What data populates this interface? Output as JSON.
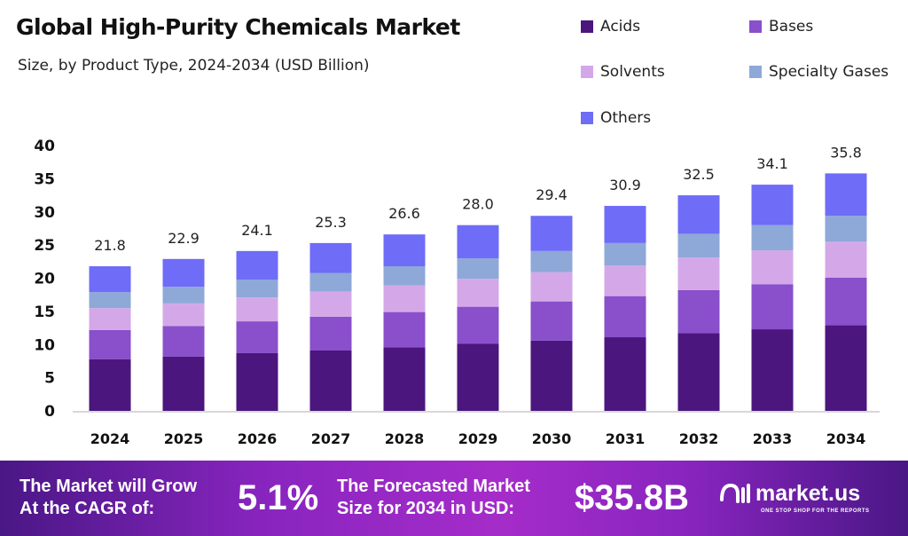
{
  "chart_data": {
    "type": "bar",
    "stacked": true,
    "title": "Global High-Purity Chemicals Market",
    "subtitle": "Size, by Product Type, 2024-2034 (USD Billion)",
    "categories": [
      "2024",
      "2025",
      "2026",
      "2027",
      "2028",
      "2029",
      "2030",
      "2031",
      "2032",
      "2033",
      "2034"
    ],
    "totals": [
      "21.8",
      "22.9",
      "24.1",
      "25.3",
      "26.6",
      "28.0",
      "29.4",
      "30.9",
      "32.5",
      "34.1",
      "35.8"
    ],
    "series": [
      {
        "name": "Acids",
        "color": "#4b167d",
        "values": [
          7.8,
          8.2,
          8.7,
          9.1,
          9.6,
          10.1,
          10.6,
          11.1,
          11.7,
          12.3,
          12.9
        ]
      },
      {
        "name": "Bases",
        "color": "#8a4fcb",
        "values": [
          4.4,
          4.6,
          4.8,
          5.1,
          5.3,
          5.6,
          5.9,
          6.2,
          6.5,
          6.8,
          7.2
        ]
      },
      {
        "name": "Solvents",
        "color": "#d4a8e8",
        "values": [
          3.3,
          3.4,
          3.6,
          3.8,
          4.0,
          4.2,
          4.4,
          4.6,
          4.9,
          5.1,
          5.4
        ]
      },
      {
        "name": "Specialty Gases",
        "color": "#8ea8d8",
        "values": [
          2.4,
          2.5,
          2.7,
          2.8,
          2.9,
          3.1,
          3.2,
          3.4,
          3.6,
          3.8,
          3.9
        ]
      },
      {
        "name": "Others",
        "color": "#6f6cf7",
        "values": [
          3.9,
          4.2,
          4.3,
          4.5,
          4.8,
          5.0,
          5.3,
          5.6,
          5.8,
          6.1,
          6.4
        ]
      }
    ],
    "yticks": [
      "0",
      "5",
      "10",
      "15",
      "20",
      "25",
      "30",
      "35",
      "40"
    ],
    "ylim": [
      0,
      40
    ],
    "grid": false,
    "legend": "top-right"
  },
  "banner": {
    "cagr_label_1": "The Market will Grow",
    "cagr_label_2": "At the CAGR of:",
    "cagr_value": "5.1%",
    "forecast_label_1": "The Forecasted Market",
    "forecast_label_2": "Size for 2034 in USD:",
    "forecast_value": "$35.8B",
    "logo_text": "market.us",
    "logo_tagline": "ONE STOP SHOP FOR THE REPORTS"
  }
}
